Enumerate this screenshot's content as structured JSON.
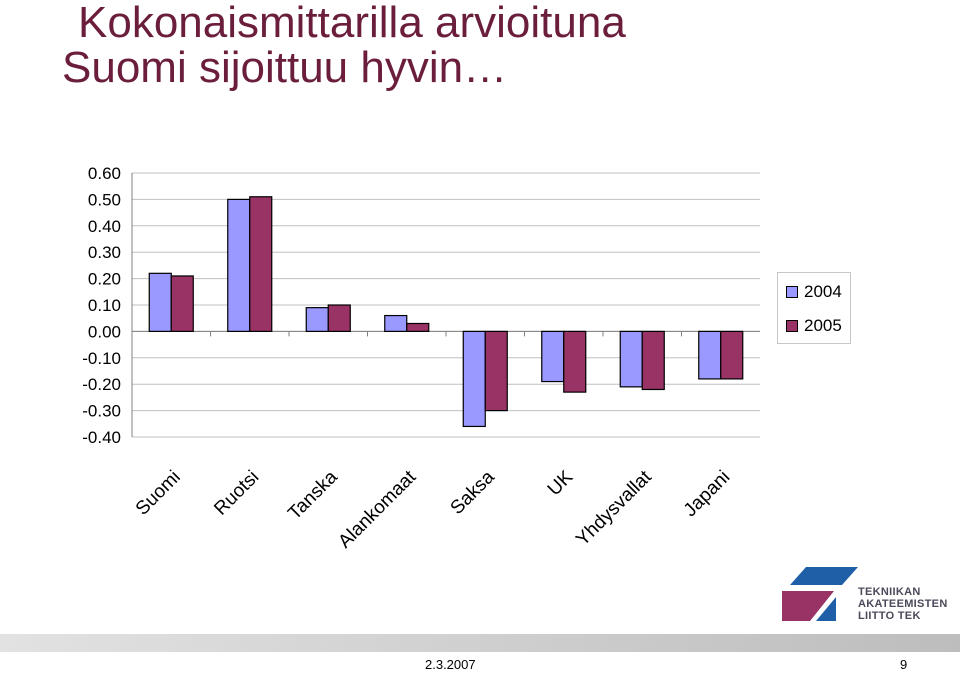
{
  "slide": {
    "title_line1": "Kokonaismittarilla arvioituna",
    "title_line2": "Suomi sijoittuu hyvin…",
    "footer_date": "2.3.2007",
    "page_number": "9",
    "logo_text": [
      "TEKNIIKAN",
      "AKATEEMISTEN",
      "LIITTO TEK"
    ],
    "logo_icon": "tek-logo-icon"
  },
  "colors": {
    "series_2004": "#9999ff",
    "series_2005": "#993366",
    "title": "#6b1e3c"
  },
  "chart_data": {
    "type": "bar",
    "categories": [
      "Suomi",
      "Ruotsi",
      "Tanska",
      "Alankomaat",
      "Saksa",
      "UK",
      "Yhdysvallat",
      "Japani"
    ],
    "series": [
      {
        "name": "2004",
        "values": [
          0.22,
          0.5,
          0.09,
          0.06,
          -0.36,
          -0.19,
          -0.21,
          -0.18
        ]
      },
      {
        "name": "2005",
        "values": [
          0.21,
          0.51,
          0.1,
          0.03,
          -0.3,
          -0.23,
          -0.22,
          -0.18
        ]
      }
    ],
    "ylim": [
      -0.4,
      0.6
    ],
    "yticks": [
      "0.60",
      "0.50",
      "0.40",
      "0.30",
      "0.20",
      "0.10",
      "0.00",
      "-0.10",
      "-0.20",
      "-0.30",
      "-0.40"
    ],
    "grid": true,
    "legend_position": "right"
  }
}
